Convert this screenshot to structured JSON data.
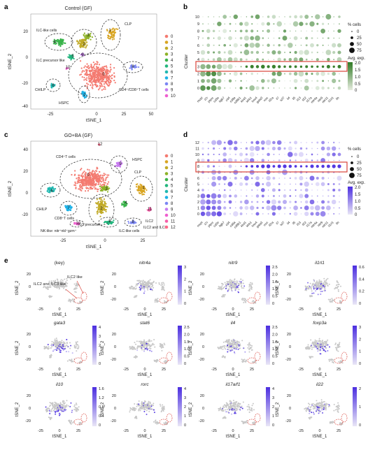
{
  "panels": {
    "a": {
      "letter": "a",
      "title": "Control (GF)",
      "xlabel": "tSNE_1",
      "ylabel": "tSNE_2",
      "xticks": [
        "-25",
        "0",
        "25",
        "50"
      ],
      "yticks": [
        "20",
        "0",
        "-20",
        "-40"
      ],
      "cluster_labels": [
        "ILC-like cells",
        "ILC precursor like",
        "CHILP",
        "HSPC",
        "CLP",
        "CD4⁺/CD8⁺T cells"
      ],
      "legend": [
        "0",
        "1",
        "2",
        "3",
        "4",
        "5",
        "6",
        "7",
        "8",
        "9",
        "10"
      ],
      "cluster_numbers": [
        "0",
        "1",
        "2",
        "3",
        "4",
        "5",
        "6",
        "7",
        "8",
        "9",
        "10"
      ]
    },
    "b": {
      "letter": "b",
      "ylabel": "Cluster",
      "clusters": [
        "10",
        "9",
        "8",
        "7",
        "6",
        "5",
        "4",
        "3",
        "2",
        "1",
        "0"
      ],
      "genes": [
        "mcpt",
        "il7r",
        "ptprc",
        "cd3e",
        "itgb7",
        "cd4",
        "cd8a",
        "cd8b1",
        "klrd1",
        "klrb1",
        "lmo4",
        "gata3",
        "rorc",
        "il2ra",
        "il7",
        "tcf7",
        "il4",
        "il5",
        "il13",
        "il22",
        "il17a",
        "nitr4a",
        "nitr9",
        "nitr11",
        "il1rl1",
        "ifn"
      ],
      "pct_legend_title": "% cells",
      "pct_legend": [
        "0",
        "25",
        "50",
        "75"
      ],
      "expr_legend_title": "Avg. exp.",
      "expr_legend": [
        "2.0",
        "1.5",
        "1.0",
        "0.5",
        "0"
      ],
      "highlight_cluster": "4"
    },
    "c": {
      "letter": "c",
      "title": "GO+BA (GF)",
      "xlabel": "tSNE_1",
      "ylabel": "tSNE_2",
      "xticks": [
        "-25",
        "0",
        "25"
      ],
      "yticks": [
        "40",
        "20",
        "0",
        "-20"
      ],
      "cluster_labels": [
        "CD4⁺T cells",
        "HSPC",
        "CLP",
        "CHILP",
        "CD8⁺T cells",
        "ILC precursor",
        "NK-like: nitr⁺nkl⁺gzm⁺",
        "ILC-like cells",
        "ILC2",
        "ILC2 and ILC3"
      ],
      "legend": [
        "0",
        "1",
        "2",
        "3",
        "4",
        "5",
        "6",
        "7",
        "8",
        "9",
        "10",
        "11",
        "12"
      ],
      "cluster_numbers": [
        "0",
        "1",
        "2",
        "3",
        "4",
        "5",
        "6",
        "7",
        "8",
        "9",
        "10",
        "11",
        "12"
      ]
    },
    "d": {
      "letter": "d",
      "ylabel": "Cluster",
      "clusters": [
        "12",
        "11",
        "10",
        "9",
        "8",
        "7",
        "6",
        "5",
        "4",
        "3",
        "2",
        "1",
        "0"
      ],
      "genes": [
        "mcpt",
        "il7r",
        "ptprc",
        "cd3e",
        "itgb7",
        "cd4",
        "cd8a",
        "cd8b1",
        "klrd1",
        "klrb1",
        "lmo4",
        "gata3",
        "rorc",
        "il2ra",
        "il7",
        "tcf7",
        "il4",
        "il5",
        "il13",
        "il22",
        "il17a",
        "nitr4a",
        "nitr9",
        "nitr11",
        "il1rl1",
        "ifn"
      ],
      "pct_legend_title": "% cells",
      "pct_legend": [
        "0",
        "25",
        "50",
        "75"
      ],
      "expr_legend_title": "Avg. exp.",
      "expr_legend": [
        "2.0",
        "1.5",
        "1.0",
        "0.5",
        "0"
      ],
      "highlight_cluster": "8"
    },
    "e": {
      "letter": "e",
      "xlabel": "tSNE_1",
      "ylabel": "tSNE_2",
      "xticks": [
        "-25",
        "0",
        "25"
      ],
      "yticks": [
        "20",
        "0",
        "-20"
      ],
      "subplots": [
        {
          "title": "(key)",
          "italic": false,
          "scale": [],
          "key_labels": [
            "ILC2 and ILC3 like",
            "ILC2 like"
          ]
        },
        {
          "title": "nitr4a",
          "italic": true,
          "scale": [
            "3",
            "2",
            "1",
            "0"
          ]
        },
        {
          "title": "nitr9",
          "italic": true,
          "scale": [
            "2.5",
            "2.0",
            "1.5",
            "1.0",
            "0.5",
            "0"
          ]
        },
        {
          "title": "il1rl1",
          "italic": true,
          "scale": [
            "0.6",
            "0.4",
            "0.2",
            "0"
          ]
        },
        {
          "title": "gata3",
          "italic": true,
          "scale": [
            "4",
            "3",
            "2",
            "1",
            "0"
          ]
        },
        {
          "title": "stat6",
          "italic": true,
          "scale": [
            "2.5",
            "2.0",
            "1.5",
            "1.0",
            "0.5",
            "0"
          ]
        },
        {
          "title": "il4",
          "italic": true,
          "scale": [
            "2.5",
            "2.0",
            "1.5",
            "1.0",
            "0.5",
            "0"
          ]
        },
        {
          "title": "foxp3a",
          "italic": true,
          "scale": [
            "3",
            "2",
            "1",
            "0"
          ]
        },
        {
          "title": "il10",
          "italic": true,
          "scale": [
            "1.6",
            "1.2",
            "0.8",
            "0.4",
            "0"
          ]
        },
        {
          "title": "rorc",
          "italic": true,
          "scale": [
            "4",
            "3",
            "2",
            "1",
            "0"
          ]
        },
        {
          "title": "il17a/f1",
          "italic": true,
          "scale": [
            "4",
            "3",
            "2",
            "1",
            "0"
          ]
        },
        {
          "title": "il22",
          "italic": true,
          "scale": [
            "2",
            "1",
            "0"
          ]
        }
      ]
    }
  },
  "colors": {
    "c0": "#f47b71",
    "c1": "#d9a521",
    "c2": "#c1aa27",
    "c3": "#8cb226",
    "c4": "#39b34a",
    "c5": "#23b67e",
    "c6": "#20b8b0",
    "c7": "#1cb1e6",
    "c8": "#7b86f3",
    "c9": "#c87bf0",
    "c10": "#ef5fcf",
    "c11": "#f55fa8",
    "c12": "#ff6b8a",
    "green": "#2f7a24",
    "purple": "#4b2ee0",
    "grey": "#c8c8c8",
    "highlight": "#d9433a"
  }
}
